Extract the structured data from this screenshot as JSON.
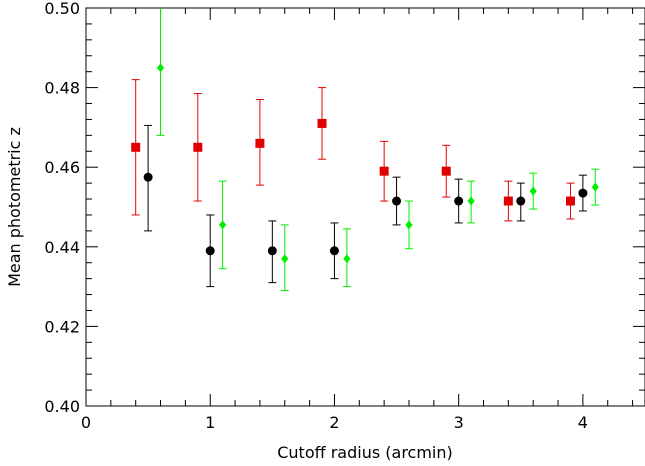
{
  "chart_data": {
    "type": "scatter",
    "title": "",
    "xlabel": "Cutoff radius (arcmin)",
    "ylabel": "Mean photometric z",
    "xlim": [
      0,
      4.5
    ],
    "ylim": [
      0.4,
      0.5
    ],
    "x_ticks": [
      "0",
      "1",
      "2",
      "3",
      "4"
    ],
    "y_ticks": [
      "0.40",
      "0.42",
      "0.44",
      "0.46",
      "0.48",
      "0.50"
    ],
    "grid": false,
    "legend": "none",
    "series": [
      {
        "marker": "square",
        "color": "#e00000",
        "points": [
          {
            "x": 0.4,
            "y": 0.465,
            "ylow": 0.448,
            "yhigh": 0.482
          },
          {
            "x": 0.9,
            "y": 0.465,
            "ylow": 0.4515,
            "yhigh": 0.4785
          },
          {
            "x": 1.4,
            "y": 0.466,
            "ylow": 0.4555,
            "yhigh": 0.477
          },
          {
            "x": 1.9,
            "y": 0.471,
            "ylow": 0.462,
            "yhigh": 0.48
          },
          {
            "x": 2.4,
            "y": 0.459,
            "ylow": 0.4515,
            "yhigh": 0.4665
          },
          {
            "x": 2.9,
            "y": 0.459,
            "ylow": 0.4525,
            "yhigh": 0.4655
          },
          {
            "x": 3.4,
            "y": 0.4515,
            "ylow": 0.4465,
            "yhigh": 0.4565
          },
          {
            "x": 3.9,
            "y": 0.4515,
            "ylow": 0.447,
            "yhigh": 0.456
          }
        ]
      },
      {
        "marker": "circle",
        "color": "#000000",
        "points": [
          {
            "x": 0.5,
            "y": 0.4575,
            "ylow": 0.444,
            "yhigh": 0.4705
          },
          {
            "x": 1.0,
            "y": 0.439,
            "ylow": 0.43,
            "yhigh": 0.448
          },
          {
            "x": 1.5,
            "y": 0.439,
            "ylow": 0.431,
            "yhigh": 0.4465
          },
          {
            "x": 2.0,
            "y": 0.439,
            "ylow": 0.432,
            "yhigh": 0.446
          },
          {
            "x": 2.5,
            "y": 0.4515,
            "ylow": 0.4455,
            "yhigh": 0.4575
          },
          {
            "x": 3.0,
            "y": 0.4515,
            "ylow": 0.446,
            "yhigh": 0.457
          },
          {
            "x": 3.5,
            "y": 0.4515,
            "ylow": 0.4465,
            "yhigh": 0.456
          },
          {
            "x": 4.0,
            "y": 0.4535,
            "ylow": 0.449,
            "yhigh": 0.458
          }
        ]
      },
      {
        "marker": "diamond",
        "color": "#00ee00",
        "points": [
          {
            "x": 0.6,
            "y": 0.485,
            "ylow": 0.468,
            "yhigh": 0.502
          },
          {
            "x": 1.1,
            "y": 0.4455,
            "ylow": 0.4345,
            "yhigh": 0.4565
          },
          {
            "x": 1.6,
            "y": 0.437,
            "ylow": 0.429,
            "yhigh": 0.4455
          },
          {
            "x": 2.1,
            "y": 0.437,
            "ylow": 0.43,
            "yhigh": 0.4445
          },
          {
            "x": 2.6,
            "y": 0.4455,
            "ylow": 0.4395,
            "yhigh": 0.4515
          },
          {
            "x": 3.1,
            "y": 0.4515,
            "ylow": 0.446,
            "yhigh": 0.4565
          },
          {
            "x": 3.6,
            "y": 0.454,
            "ylow": 0.4495,
            "yhigh": 0.4585
          },
          {
            "x": 4.1,
            "y": 0.455,
            "ylow": 0.4505,
            "yhigh": 0.4595
          }
        ]
      }
    ]
  }
}
